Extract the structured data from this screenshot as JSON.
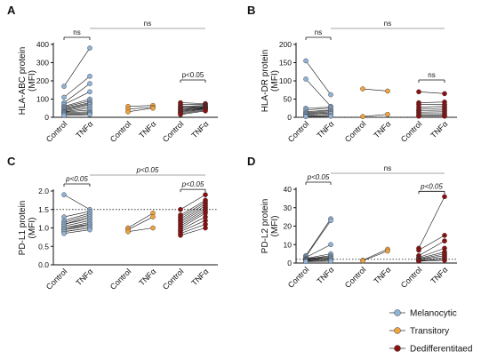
{
  "colors": {
    "Melanocytic": "#8fb2d6",
    "Transitory": "#f0a23c",
    "Dedifferentiated": "#8b1010",
    "pairs": "#111111",
    "axis": "#111111"
  },
  "legend": {
    "items": [
      {
        "key": "Melanocytic",
        "label": "Melanocytic"
      },
      {
        "key": "Transitory",
        "label": "Transitory"
      },
      {
        "key": "Dedifferentiated",
        "label": "Dedifferentitaed"
      }
    ]
  },
  "chart_data": [
    {
      "panel": "A",
      "type": "scatter",
      "subtype": "paired-dot",
      "ylabel": [
        "HLA-ABC protein",
        "(MFI)"
      ],
      "ylim": [
        0,
        400
      ],
      "yticks": [
        0,
        100,
        200,
        300,
        400
      ],
      "ref_line": null,
      "categories": [
        "Control",
        "TNFα",
        "Control",
        "TNFα",
        "Control",
        "TNFα"
      ],
      "groups": [
        {
          "series": "Melanocytic",
          "control": [
            170,
            110,
            80,
            70,
            60,
            55,
            50,
            45,
            40,
            35,
            30,
            28,
            25,
            20,
            15,
            10
          ],
          "tnf": [
            380,
            225,
            185,
            140,
            100,
            90,
            80,
            75,
            70,
            60,
            50,
            40,
            30,
            25,
            20,
            15
          ]
        },
        {
          "series": "Transitory",
          "control": [
            60,
            45,
            30
          ],
          "tnf": [
            65,
            55,
            50
          ]
        },
        {
          "series": "Dedifferentiated",
          "control": [
            80,
            70,
            60,
            55,
            50,
            45,
            40,
            35,
            30,
            25,
            20,
            15
          ],
          "tnf": [
            75,
            70,
            65,
            60,
            58,
            55,
            52,
            50,
            48,
            45,
            40,
            35
          ]
        }
      ],
      "annotations": [
        {
          "text": "ns",
          "from": 0,
          "to": 1,
          "level": 1
        },
        {
          "text": "ns",
          "from": 1,
          "to": 5,
          "level": 2
        },
        {
          "text": "p<0.05",
          "from": 4,
          "to": 5,
          "level": 0
        }
      ]
    },
    {
      "panel": "B",
      "type": "scatter",
      "subtype": "paired-dot",
      "ylabel": [
        "HLA-DR protein",
        "(MFI)"
      ],
      "ylim": [
        0,
        200
      ],
      "yticks": [
        0,
        50,
        100,
        150,
        200
      ],
      "ref_line": 0,
      "categories": [
        "Control",
        "TNFα",
        "Control",
        "TNFα",
        "Control",
        "TNFα"
      ],
      "groups": [
        {
          "series": "Melanocytic",
          "control": [
            155,
            105,
            25,
            20,
            15,
            12,
            10,
            8,
            5,
            3,
            2
          ],
          "tnf": [
            62,
            30,
            28,
            25,
            20,
            18,
            15,
            12,
            10,
            5,
            3
          ]
        },
        {
          "series": "Transitory",
          "control": [
            78,
            2
          ],
          "tnf": [
            72,
            8
          ]
        },
        {
          "series": "Dedifferentiated",
          "control": [
            70,
            40,
            35,
            28,
            22,
            18,
            14,
            10,
            6,
            3
          ],
          "tnf": [
            65,
            42,
            35,
            30,
            25,
            20,
            15,
            10,
            6,
            3
          ]
        }
      ],
      "annotations": [
        {
          "text": "ns",
          "from": 0,
          "to": 1,
          "level": 1
        },
        {
          "text": "ns",
          "from": 1,
          "to": 5,
          "level": 2
        },
        {
          "text": "ns",
          "from": 4,
          "to": 5,
          "level": 0
        }
      ]
    },
    {
      "panel": "C",
      "type": "scatter",
      "subtype": "paired-dot",
      "ylabel": [
        "PD-L1 protein",
        "(MFI)"
      ],
      "ylim": [
        0,
        2.0
      ],
      "yticks": [
        0.0,
        0.5,
        1.0,
        1.5,
        2.0
      ],
      "tick_decimals": 1,
      "ref_line": 1.5,
      "categories": [
        "Control",
        "TNFα",
        "Control",
        "TNFα",
        "Control",
        "TNFα"
      ],
      "groups": [
        {
          "series": "Melanocytic",
          "control": [
            1.9,
            1.3,
            1.2,
            1.15,
            1.1,
            1.1,
            1.05,
            1.0,
            1.0,
            0.95,
            0.95,
            0.9,
            0.9,
            0.85
          ],
          "tnf": [
            1.5,
            1.45,
            1.4,
            1.35,
            1.3,
            1.25,
            1.2,
            1.15,
            1.1,
            1.1,
            1.05,
            1.0,
            1.0,
            0.95
          ]
        },
        {
          "series": "Transitory",
          "control": [
            1.0,
            0.95,
            0.9
          ],
          "tnf": [
            1.4,
            1.3,
            1.0
          ]
        },
        {
          "series": "Dedifferentiated",
          "control": [
            1.5,
            1.35,
            1.3,
            1.25,
            1.2,
            1.15,
            1.1,
            1.05,
            1.0,
            0.95,
            0.9,
            0.85,
            0.8
          ],
          "tnf": [
            1.9,
            1.75,
            1.7,
            1.65,
            1.6,
            1.55,
            1.5,
            1.45,
            1.4,
            1.3,
            1.2,
            1.1,
            1.0
          ]
        }
      ],
      "annotations": [
        {
          "text": "p<0.05",
          "from": 0,
          "to": 1,
          "level": 1,
          "italic": true
        },
        {
          "text": "p<0.05",
          "from": 1,
          "to": 5,
          "level": 2,
          "italic": true
        },
        {
          "text": "p<0.05",
          "from": 4,
          "to": 5,
          "level": 0,
          "italic": true
        }
      ]
    },
    {
      "panel": "D",
      "type": "scatter",
      "subtype": "paired-dot",
      "ylabel": [
        "PD-L2 protein",
        "(MFI)"
      ],
      "ylim": [
        0,
        40
      ],
      "yticks": [
        0,
        10,
        20,
        30,
        40
      ],
      "ref_line": 2,
      "categories": [
        "Control",
        "TNFα",
        "Control",
        "TNFα",
        "Control",
        "TNFα"
      ],
      "groups": [
        {
          "series": "Melanocytic",
          "control": [
            4,
            3.5,
            3,
            2.5,
            2.2,
            2,
            1.8,
            1.5,
            1.2,
            1,
            0.8
          ],
          "tnf": [
            24,
            23,
            10,
            5,
            4,
            3.5,
            3,
            2.5,
            2,
            1.5,
            1
          ]
        },
        {
          "series": "Transitory",
          "control": [
            1.5,
            1.2
          ],
          "tnf": [
            7.5,
            6.5
          ]
        },
        {
          "series": "Dedifferentiated",
          "control": [
            8,
            7,
            4,
            3,
            2.5,
            2,
            1.8,
            1.5,
            1.2,
            1
          ],
          "tnf": [
            36,
            15,
            12,
            8,
            6,
            5,
            4,
            3,
            2,
            1.5
          ]
        }
      ],
      "annotations": [
        {
          "text": "p<0.05",
          "from": 0,
          "to": 1,
          "level": 1,
          "italic": true
        },
        {
          "text": "ns",
          "from": 1,
          "to": 5,
          "level": 2
        },
        {
          "text": "p<0.05",
          "from": 4,
          "to": 5,
          "level": 0,
          "italic": true
        }
      ]
    }
  ]
}
